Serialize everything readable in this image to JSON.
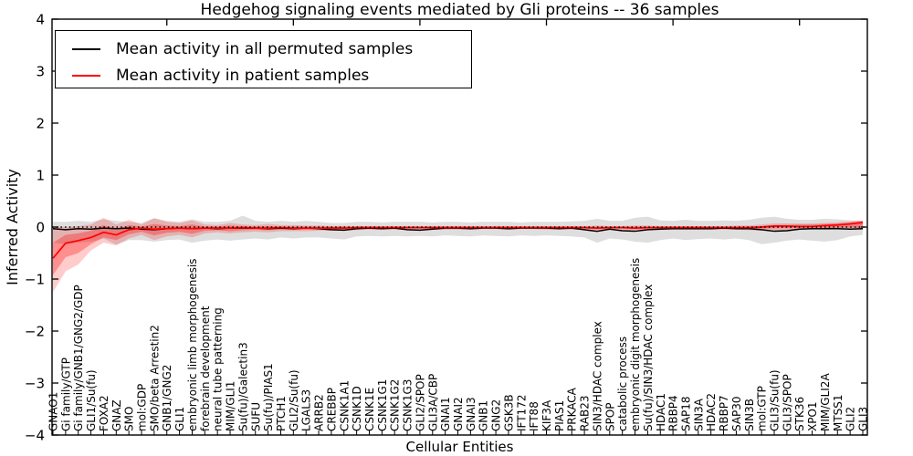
{
  "colors": {
    "permuted_line": "#000000",
    "patient_line": "#ff0000",
    "permuted_band": "rgba(0,0,0,0.13)",
    "patient_band_outer": "rgba(255,0,0,0.20)",
    "patient_band_inner": "rgba(255,0,0,0.30)",
    "axes": "#000000",
    "background": "#ffffff"
  },
  "chart_data": {
    "type": "line",
    "title": "Hedgehog signaling events mediated by Gli proteins -- 36 samples",
    "xlabel": "Cellular Entities",
    "ylabel": "Inferred Activity",
    "ylim": [
      -4,
      4
    ],
    "yticks": [
      -4,
      -3,
      -2,
      -1,
      0,
      1,
      2,
      3,
      4
    ],
    "xticks_top": [
      10,
      20,
      30,
      40,
      50,
      60
    ],
    "grid": false,
    "legend_position": "upper left",
    "zero_line": 0,
    "categories": [
      "GNAO1",
      "Gi family/GTP",
      "Gi family/GNB1/GNG2/GDP",
      "GLI1/Su(fu)",
      "FOXA2",
      "GNAZ",
      "SMO",
      "mol:GDP",
      "SMO/beta Arrestin2",
      "GNB1/GNG2",
      "GLI1",
      "embryonic limb morphogenesis",
      "forebrain development",
      "neural tube patterning",
      "MIM/GLI1",
      "Su(fu)/Galectin3",
      "SUFU",
      "Su(fu)/PIAS1",
      "PTCH1",
      "GLI2/Su(fu)",
      "LGALS3",
      "ARRB2",
      "CREBBP",
      "CSNK1A1",
      "CSNK1D",
      "CSNK1E",
      "CSNK1G1",
      "CSNK1G2",
      "CSNK1G3",
      "GLI2/SPOP",
      "GLI3A/CBP",
      "GNAI1",
      "GNAI2",
      "GNAI3",
      "GNB1",
      "GNG2",
      "GSK3B",
      "IFT172",
      "IFT88",
      "KIF3A",
      "PIAS1",
      "PRKACA",
      "RAB23",
      "SIN3/HDAC complex",
      "SPOP",
      "catabolic process",
      "embryonic digit morphogenesis",
      "Su(fu)/SIN3/HDAC complex",
      "HDAC1",
      "RBBP4",
      "SAP18",
      "SIN3A",
      "HDAC2",
      "RBBP7",
      "SAP30",
      "SIN3B",
      "mol:GTP",
      "GLI3/Su(fu)",
      "GLI3/SPOP",
      "STK36",
      "XPO1",
      "MIM/GLI2A",
      "MTSS1",
      "GLI2",
      "GLI3"
    ],
    "series": [
      {
        "name": "Mean activity in all permuted samples",
        "color": "#000000",
        "values": [
          -0.03,
          -0.05,
          -0.03,
          -0.04,
          -0.02,
          -0.03,
          -0.02,
          -0.04,
          -0.05,
          -0.03,
          -0.02,
          -0.03,
          -0.02,
          -0.03,
          -0.02,
          -0.02,
          -0.02,
          -0.03,
          -0.02,
          -0.03,
          -0.02,
          -0.03,
          -0.05,
          -0.06,
          -0.03,
          -0.02,
          -0.03,
          -0.02,
          -0.05,
          -0.06,
          -0.04,
          -0.02,
          -0.02,
          -0.03,
          -0.02,
          -0.02,
          -0.03,
          -0.02,
          -0.02,
          -0.02,
          -0.03,
          -0.02,
          -0.05,
          -0.08,
          -0.04,
          -0.07,
          -0.08,
          -0.05,
          -0.04,
          -0.03,
          -0.03,
          -0.03,
          -0.03,
          -0.02,
          -0.03,
          -0.03,
          -0.05,
          -0.08,
          -0.07,
          -0.04,
          -0.03,
          -0.03,
          -0.03,
          -0.04,
          -0.03
        ]
      },
      {
        "name": "Mean activity in patient samples",
        "color": "#ff0000",
        "values": [
          -0.6,
          -0.31,
          -0.26,
          -0.2,
          -0.1,
          -0.15,
          -0.05,
          -0.02,
          -0.04,
          -0.03,
          -0.02,
          -0.03,
          -0.02,
          -0.02,
          -0.02,
          -0.01,
          -0.02,
          -0.02,
          -0.01,
          -0.02,
          -0.02,
          -0.02,
          -0.02,
          -0.02,
          -0.01,
          -0.01,
          -0.01,
          -0.01,
          -0.01,
          -0.01,
          -0.01,
          -0.01,
          -0.01,
          -0.01,
          -0.01,
          -0.01,
          -0.01,
          -0.01,
          -0.01,
          -0.01,
          -0.01,
          -0.01,
          -0.01,
          -0.02,
          -0.01,
          -0.01,
          -0.02,
          -0.01,
          -0.01,
          -0.01,
          -0.01,
          -0.01,
          -0.01,
          -0.01,
          -0.01,
          -0.01,
          0.0,
          0.02,
          0.02,
          0.01,
          0.01,
          0.03,
          0.04,
          0.06,
          0.09
        ]
      }
    ],
    "bands": [
      {
        "name": "permuted-band",
        "color": "rgba(0,0,0,0.13)",
        "upper": [
          0.1,
          0.1,
          0.12,
          0.1,
          0.15,
          0.12,
          0.1,
          0.08,
          0.17,
          0.12,
          0.1,
          0.15,
          0.1,
          0.1,
          0.12,
          0.22,
          0.12,
          0.1,
          0.12,
          0.1,
          0.12,
          0.1,
          0.08,
          0.08,
          0.1,
          0.1,
          0.09,
          0.1,
          0.1,
          0.1,
          0.09,
          0.1,
          0.1,
          0.09,
          0.1,
          0.1,
          0.1,
          0.09,
          0.1,
          0.1,
          0.1,
          0.11,
          0.12,
          0.16,
          0.12,
          0.12,
          0.18,
          0.2,
          0.13,
          0.12,
          0.14,
          0.12,
          0.12,
          0.13,
          0.12,
          0.14,
          0.18,
          0.2,
          0.16,
          0.14,
          0.14,
          0.16,
          0.15,
          0.13,
          0.12
        ],
        "lower": [
          -0.3,
          -0.33,
          -0.3,
          -0.28,
          -0.22,
          -0.34,
          -0.25,
          -0.25,
          -0.28,
          -0.25,
          -0.24,
          -0.3,
          -0.26,
          -0.24,
          -0.26,
          -0.24,
          -0.22,
          -0.24,
          -0.2,
          -0.22,
          -0.2,
          -0.2,
          -0.22,
          -0.24,
          -0.18,
          -0.17,
          -0.18,
          -0.17,
          -0.18,
          -0.17,
          -0.18,
          -0.16,
          -0.17,
          -0.18,
          -0.16,
          -0.17,
          -0.18,
          -0.16,
          -0.17,
          -0.16,
          -0.17,
          -0.18,
          -0.2,
          -0.3,
          -0.22,
          -0.24,
          -0.28,
          -0.3,
          -0.25,
          -0.22,
          -0.25,
          -0.23,
          -0.22,
          -0.24,
          -0.22,
          -0.25,
          -0.33,
          -0.3,
          -0.26,
          -0.24,
          -0.26,
          -0.28,
          -0.25,
          -0.18,
          -0.15
        ]
      },
      {
        "name": "patient-band-outer",
        "color": "rgba(255,0,0,0.20)",
        "upper": [
          0.02,
          0.0,
          0.02,
          0.05,
          0.18,
          0.05,
          0.14,
          0.05,
          0.17,
          0.1,
          0.08,
          0.13,
          0.05,
          0.04,
          0.08,
          0.05,
          0.04,
          0.06,
          0.04,
          0.04,
          0.03,
          0.03,
          0.02,
          0.02,
          0.02,
          0.02,
          0.02,
          0.02,
          0.02,
          0.02,
          0.02,
          0.02,
          0.02,
          0.02,
          0.02,
          0.02,
          0.02,
          0.02,
          0.02,
          0.02,
          0.02,
          0.02,
          0.02,
          0.03,
          0.02,
          0.02,
          0.03,
          0.03,
          0.02,
          0.02,
          0.02,
          0.02,
          0.02,
          0.02,
          0.03,
          0.03,
          0.05,
          0.07,
          0.07,
          0.07,
          0.07,
          0.08,
          0.09,
          0.11,
          0.13
        ],
        "lower": [
          -1.25,
          -0.85,
          -0.72,
          -0.45,
          -0.3,
          -0.35,
          -0.22,
          -0.15,
          -0.25,
          -0.18,
          -0.15,
          -0.2,
          -0.12,
          -0.1,
          -0.12,
          -0.1,
          -0.09,
          -0.1,
          -0.08,
          -0.08,
          -0.08,
          -0.07,
          -0.07,
          -0.07,
          -0.06,
          -0.05,
          -0.05,
          -0.05,
          -0.05,
          -0.05,
          -0.05,
          -0.05,
          -0.05,
          -0.05,
          -0.04,
          -0.04,
          -0.05,
          -0.04,
          -0.04,
          -0.05,
          -0.04,
          -0.05,
          -0.05,
          -0.06,
          -0.05,
          -0.05,
          -0.06,
          -0.06,
          -0.05,
          -0.05,
          -0.05,
          -0.05,
          -0.05,
          -0.05,
          -0.05,
          -0.06,
          -0.07,
          -0.06,
          -0.06,
          -0.05,
          -0.05,
          -0.05,
          -0.04,
          -0.04,
          -0.05
        ]
      },
      {
        "name": "patient-band-inner",
        "color": "rgba(255,0,0,0.30)",
        "upper": [
          -0.3,
          -0.15,
          -0.12,
          -0.07,
          0.04,
          -0.05,
          0.04,
          0.01,
          0.06,
          0.03,
          0.02,
          0.05,
          0.01,
          0.01,
          0.03,
          0.02,
          0.01,
          0.02,
          0.01,
          0.01,
          0.01,
          0.01,
          0.01,
          0.01,
          0.01,
          0.01,
          0.01,
          0.01,
          0.01,
          0.01,
          0.01,
          0.01,
          0.01,
          0.01,
          0.01,
          0.01,
          0.01,
          0.01,
          0.01,
          0.01,
          0.01,
          0.01,
          0.01,
          0.01,
          0.01,
          0.01,
          0.01,
          0.01,
          0.01,
          0.01,
          0.01,
          0.01,
          0.01,
          0.01,
          0.01,
          0.01,
          0.02,
          0.04,
          0.04,
          0.05,
          0.05,
          0.06,
          0.07,
          0.09,
          0.11
        ],
        "lower": [
          -0.92,
          -0.58,
          -0.5,
          -0.33,
          -0.2,
          -0.25,
          -0.14,
          -0.09,
          -0.16,
          -0.11,
          -0.09,
          -0.13,
          -0.07,
          -0.06,
          -0.08,
          -0.06,
          -0.05,
          -0.06,
          -0.05,
          -0.05,
          -0.05,
          -0.04,
          -0.04,
          -0.04,
          -0.04,
          -0.03,
          -0.03,
          -0.03,
          -0.03,
          -0.03,
          -0.03,
          -0.03,
          -0.03,
          -0.03,
          -0.02,
          -0.02,
          -0.03,
          -0.02,
          -0.02,
          -0.03,
          -0.02,
          -0.03,
          -0.03,
          -0.04,
          -0.03,
          -0.03,
          -0.04,
          -0.04,
          -0.03,
          -0.03,
          -0.03,
          -0.03,
          -0.03,
          -0.03,
          -0.03,
          -0.03,
          -0.03,
          -0.02,
          -0.02,
          -0.02,
          -0.02,
          -0.02,
          -0.01,
          -0.01,
          -0.02
        ]
      }
    ]
  }
}
